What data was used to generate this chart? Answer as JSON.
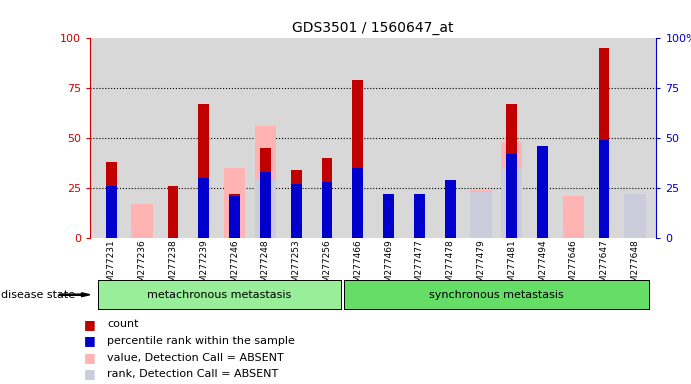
{
  "title": "GDS3501 / 1560647_at",
  "samples": [
    "GSM277231",
    "GSM277236",
    "GSM277238",
    "GSM277239",
    "GSM277246",
    "GSM277248",
    "GSM277253",
    "GSM277256",
    "GSM277466",
    "GSM277469",
    "GSM277477",
    "GSM277478",
    "GSM277479",
    "GSM277481",
    "GSM277494",
    "GSM277646",
    "GSM277647",
    "GSM277648"
  ],
  "count": [
    38,
    0,
    26,
    67,
    22,
    45,
    34,
    40,
    79,
    22,
    21,
    28,
    0,
    67,
    45,
    0,
    95,
    0
  ],
  "percentile_rank": [
    26,
    0,
    0,
    30,
    21,
    33,
    27,
    28,
    35,
    22,
    22,
    29,
    0,
    42,
    46,
    0,
    49,
    0
  ],
  "absent_value": [
    0,
    17,
    0,
    0,
    35,
    56,
    0,
    0,
    0,
    0,
    0,
    0,
    24,
    48,
    0,
    21,
    0,
    21
  ],
  "absent_rank": [
    0,
    0,
    0,
    0,
    0,
    29,
    0,
    0,
    0,
    0,
    0,
    0,
    23,
    35,
    0,
    0,
    0,
    22
  ],
  "group1_count": 8,
  "group2_count": 10,
  "group1_label": "metachronous metastasis",
  "group2_label": "synchronous metastasis",
  "ylim": [
    0,
    100
  ],
  "yticks": [
    0,
    25,
    50,
    75,
    100
  ],
  "color_count": "#c00000",
  "color_percentile": "#0000cc",
  "color_absent_value": "#ffb3b3",
  "color_absent_rank": "#ccccdd",
  "color_group1": "#99ee99",
  "color_group2": "#66dd66",
  "label_count": "count",
  "label_percentile": "percentile rank within the sample",
  "label_absent_value": "value, Detection Call = ABSENT",
  "label_absent_rank": "rank, Detection Call = ABSENT",
  "left_ylabel_color": "#cc0000",
  "right_ylabel_color": "#0000cc",
  "bg_color": "#d8d8d8"
}
